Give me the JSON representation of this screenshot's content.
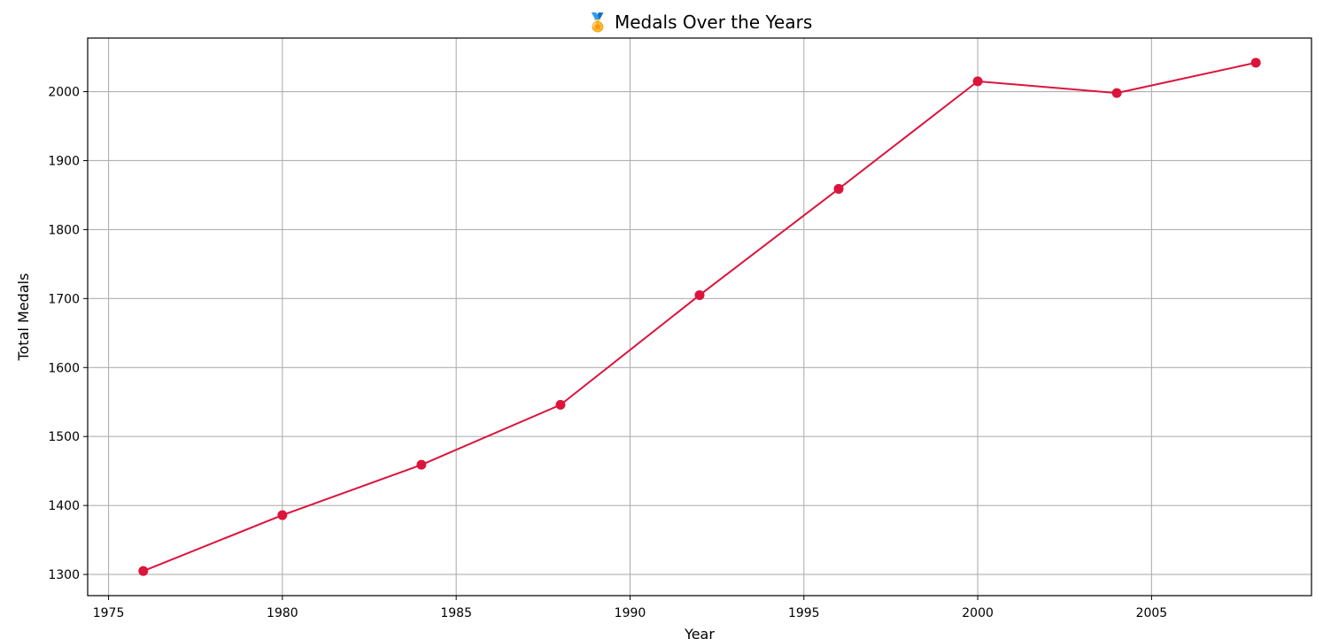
{
  "chart_data": {
    "type": "line",
    "title": "🏅 Medals Over the Years",
    "xlabel": "Year",
    "ylabel": "Total Medals",
    "xlim": [
      1974.4,
      2009.6
    ],
    "ylim": [
      1269.3,
      2077.7
    ],
    "x_ticks": [
      1975,
      1980,
      1985,
      1990,
      1995,
      2000,
      2005
    ],
    "y_ticks": [
      1300,
      1400,
      1500,
      1600,
      1700,
      1800,
      1900,
      2000
    ],
    "grid": true,
    "series": [
      {
        "color": "#dc143c",
        "marker": "circle",
        "x": [
          1976,
          1980,
          1984,
          1988,
          1992,
          1996,
          2000,
          2004,
          2008
        ],
        "y": [
          1305,
          1386,
          1459,
          1546,
          1705,
          1859,
          2015,
          1998,
          2042
        ]
      }
    ]
  }
}
